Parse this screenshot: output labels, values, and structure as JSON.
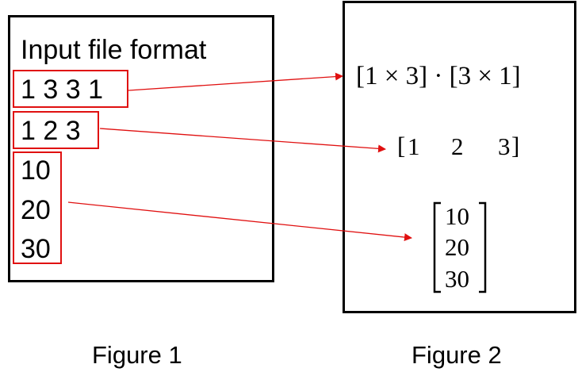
{
  "figure1": {
    "title": "Input file format",
    "line1": "1 3 3 1",
    "line2": "1 2 3",
    "line3": "10",
    "line4": "20",
    "line5": "30",
    "caption": "Figure 1"
  },
  "figure2": {
    "dims_expr": "[1 × 3] · [3 × 1]",
    "row_vector": [
      "1",
      "2",
      "3"
    ],
    "col_vector": [
      "10",
      "20",
      "30"
    ],
    "caption": "Figure 2"
  },
  "colors": {
    "box_outline": "#e01010",
    "arrow": "#e01010",
    "panel_border": "#000000"
  }
}
